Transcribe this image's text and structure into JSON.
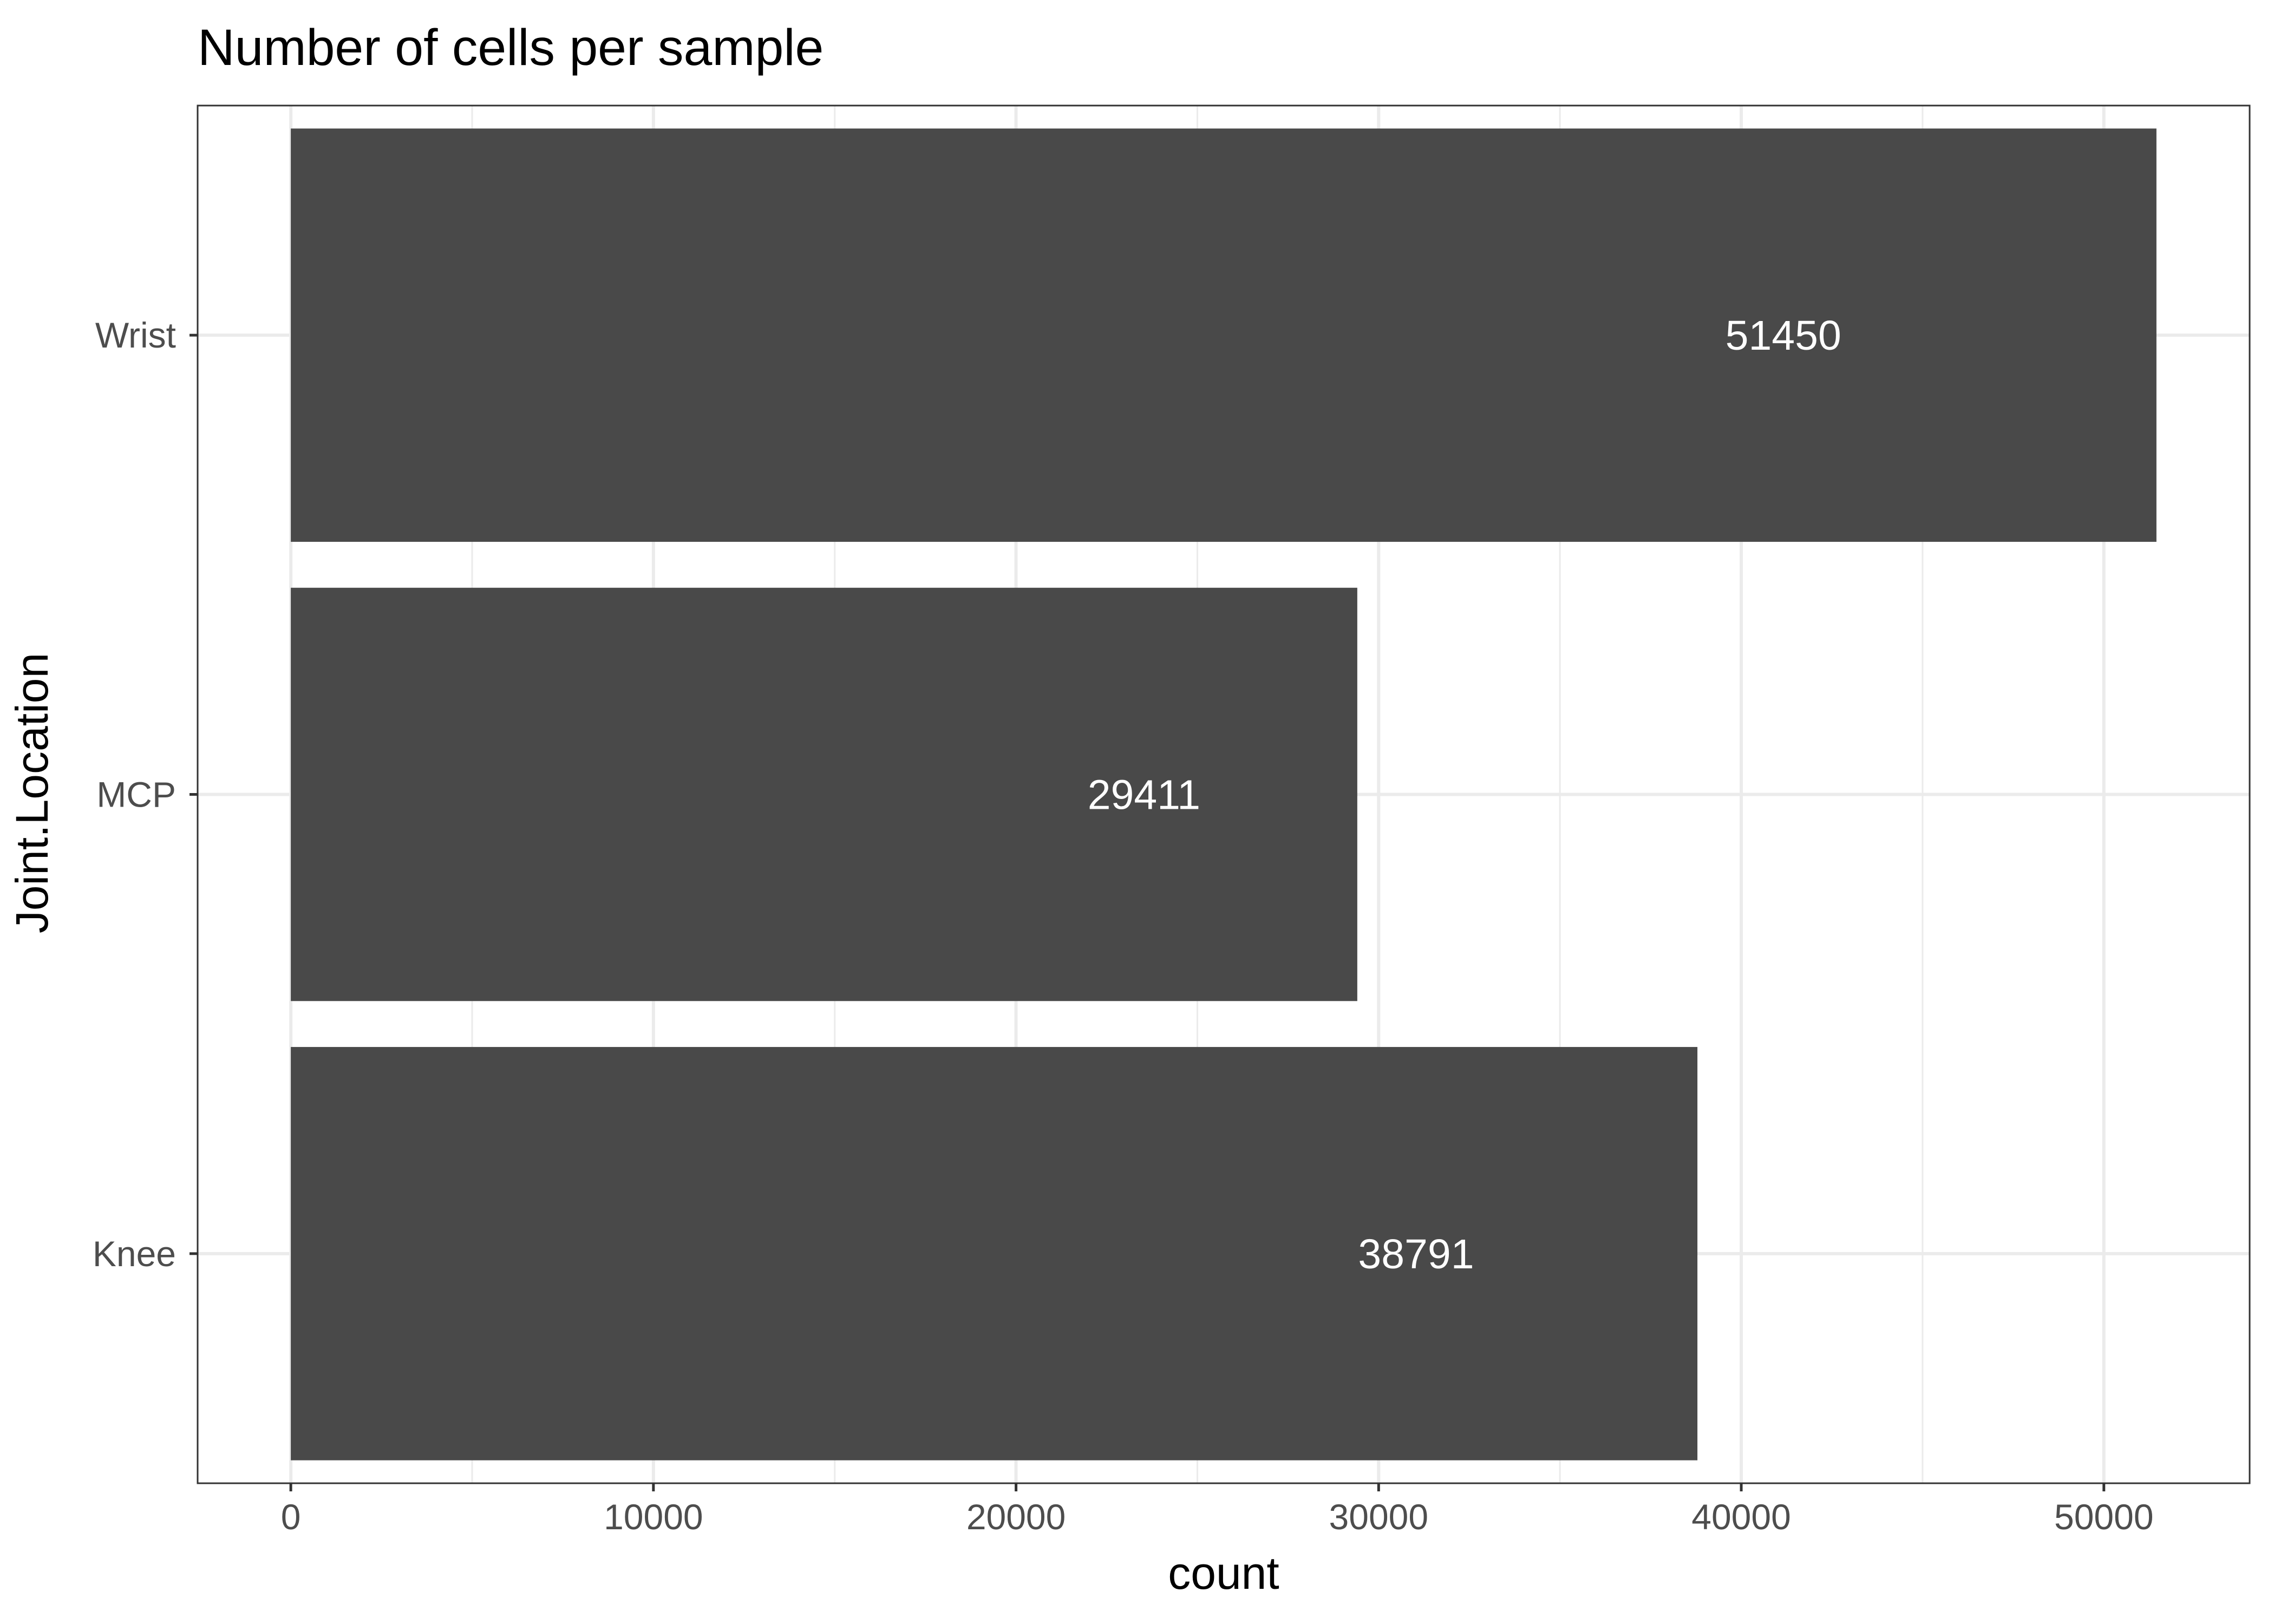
{
  "chart_data": {
    "type": "bar",
    "orientation": "horizontal",
    "title": "Number of cells per sample",
    "xlabel": "count",
    "ylabel": "Joint.Location",
    "categories": [
      "Knee",
      "MCP",
      "Wrist"
    ],
    "values": [
      38791,
      29411,
      51450
    ],
    "data_labels": [
      "38791",
      "29411",
      "51450"
    ],
    "xlim": [
      -2570,
      54020
    ],
    "xticks": [
      0,
      10000,
      20000,
      30000,
      40000,
      50000
    ],
    "xtick_labels": [
      "0",
      "10000",
      "20000",
      "30000",
      "40000",
      "50000"
    ],
    "grid": true,
    "legend": "none",
    "colors": {
      "bar": "#494949",
      "grid": "#ebebeb",
      "panel_border": "#333333",
      "tick_text": "#4d4d4d",
      "bar_label_text": "#ffffff"
    }
  }
}
